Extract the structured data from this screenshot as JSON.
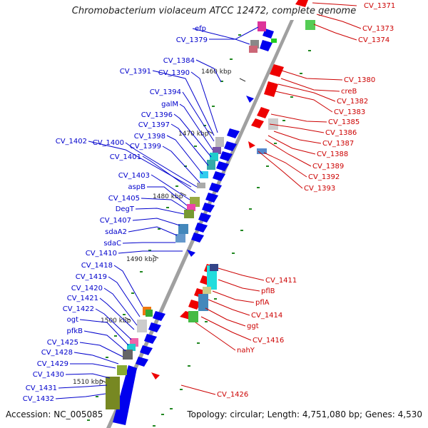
{
  "title": "Chromobacterium violaceum ATCC 12472, complete genome",
  "footer": {
    "accession": "Accession: NC_005085",
    "topology": "Topology: circular; Length: 4,751,080 bp; Genes: 4,530"
  },
  "ticks": [
    "1460 kbp",
    "1470 kbp",
    "1480 kbp",
    "1490 kbp",
    "1500 kbp",
    "1510 kbp"
  ],
  "colors": {
    "forward_label": "#0000cc",
    "reverse_label": "#cc0000",
    "backbone": "#a0a0a0",
    "forward_gene": "#0000ee",
    "reverse_gene": "#ee0000",
    "marker": "#228822"
  },
  "forward_labels": [
    "CV_1379",
    "efp",
    "CV_1384",
    "CV_1391",
    "CV_1390",
    "CV_1394",
    "galM",
    "CV_1396",
    "CV_1397",
    "CV_1398",
    "CV_1399",
    "CV_1402",
    "CV_1400",
    "CV_1401",
    "CV_1403",
    "aspB",
    "CV_1405",
    "DegT",
    "CV_1407",
    "sdaA2",
    "sdaC",
    "CV_1410",
    "CV_1418",
    "CV_1419",
    "CV_1420",
    "CV_1421",
    "CV_1422",
    "ogt",
    "pfkB",
    "CV_1425",
    "CV_1428",
    "CV_1429",
    "CV_1430",
    "CV_1431",
    "CV_1432"
  ],
  "reverse_labels": [
    "CV_1371",
    "CV_1373",
    "CV_1374",
    "CV_1380",
    "creB",
    "CV_1382",
    "CV_1383",
    "CV_1385",
    "CV_1386",
    "CV_1387",
    "CV_1388",
    "CV_1389",
    "CV_1392",
    "CV_1393",
    "CV_1411",
    "pflB",
    "pflA",
    "CV_1414",
    "ggt",
    "CV_1416",
    "nahY",
    "CV_1426"
  ]
}
